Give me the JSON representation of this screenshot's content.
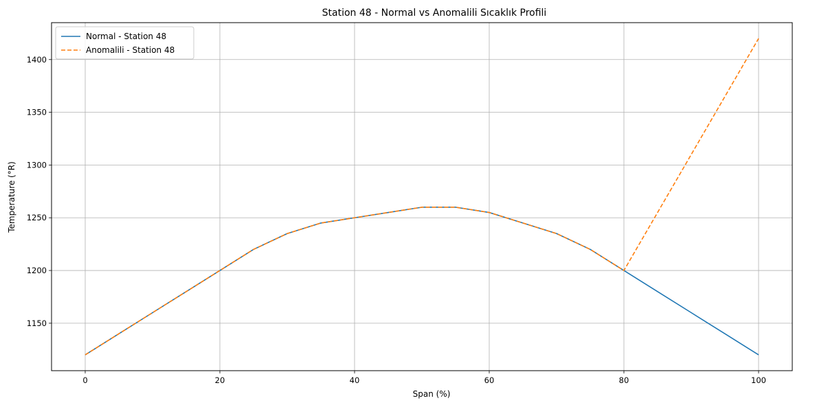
{
  "chart_data": {
    "type": "line",
    "title": "Station 48 - Normal vs Anomalili Sıcaklık Profili",
    "xlabel": "Span (%)",
    "ylabel": "Temperature (°R)",
    "xlim": [
      -5,
      105
    ],
    "ylim": [
      1105,
      1435
    ],
    "x_ticks": [
      0,
      20,
      40,
      60,
      80,
      100
    ],
    "y_ticks": [
      1150,
      1200,
      1250,
      1300,
      1350,
      1400
    ],
    "grid": true,
    "legend_position": "top-left",
    "series": [
      {
        "name": "Normal - Station 48",
        "color": "#1f77b4",
        "dash": "solid",
        "x": [
          0,
          5,
          10,
          15,
          20,
          25,
          30,
          35,
          40,
          45,
          50,
          55,
          60,
          65,
          70,
          75,
          80,
          85,
          90,
          95,
          100
        ],
        "y": [
          1120,
          1140,
          1160,
          1180,
          1200,
          1220,
          1235,
          1245,
          1250,
          1255,
          1260,
          1260,
          1255,
          1245,
          1235,
          1220,
          1200,
          1180,
          1160,
          1140,
          1120
        ]
      },
      {
        "name": "Anomalili - Station 48",
        "color": "#ff7f0e",
        "dash": "dashed",
        "x": [
          0,
          5,
          10,
          15,
          20,
          25,
          30,
          35,
          40,
          45,
          50,
          55,
          60,
          65,
          70,
          75,
          80,
          85,
          90,
          95,
          100
        ],
        "y": [
          1120,
          1140,
          1160,
          1180,
          1200,
          1220,
          1235,
          1245,
          1250,
          1255,
          1260,
          1260,
          1255,
          1245,
          1235,
          1220,
          1200,
          1255,
          1310,
          1365,
          1420
        ]
      }
    ]
  }
}
